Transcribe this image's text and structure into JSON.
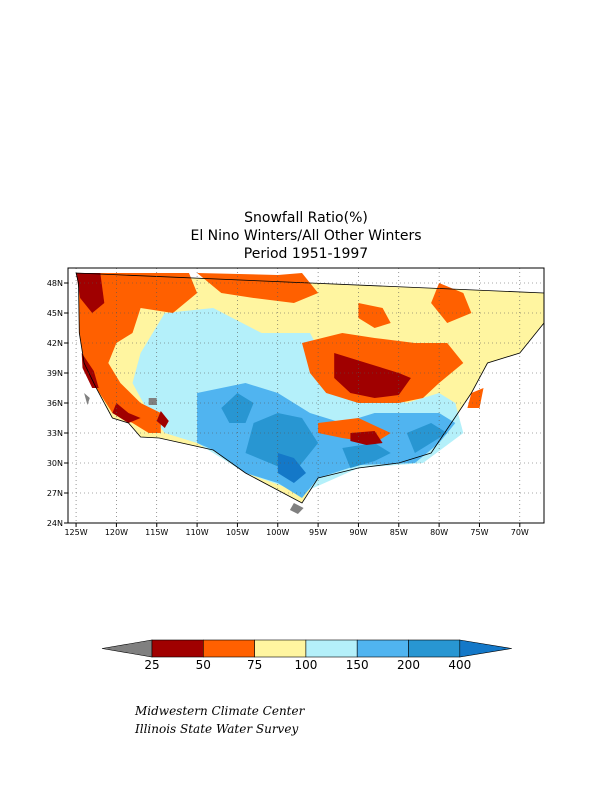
{
  "title": {
    "line1": "Snowfall Ratio(%)",
    "line2": "El Nino Winters/All Other Winters",
    "line3": "Period 1951-1997"
  },
  "map": {
    "lon_range": [
      -126,
      -67
    ],
    "lat_range": [
      24,
      49.5
    ],
    "lat_ticks": [
      {
        "value": 48,
        "label": "48N"
      },
      {
        "value": 45,
        "label": "45N"
      },
      {
        "value": 42,
        "label": "42N"
      },
      {
        "value": 39,
        "label": "39N"
      },
      {
        "value": 36,
        "label": "36N"
      },
      {
        "value": 33,
        "label": "33N"
      },
      {
        "value": 30,
        "label": "30N"
      },
      {
        "value": 27,
        "label": "27N"
      },
      {
        "value": 24,
        "label": "24N"
      }
    ],
    "lon_ticks": [
      {
        "value": -125,
        "label": "125W"
      },
      {
        "value": -120,
        "label": "120W"
      },
      {
        "value": -115,
        "label": "115W"
      },
      {
        "value": -110,
        "label": "110W"
      },
      {
        "value": -105,
        "label": "105W"
      },
      {
        "value": -100,
        "label": "100W"
      },
      {
        "value": -95,
        "label": "95W"
      },
      {
        "value": -90,
        "label": "90W"
      },
      {
        "value": -85,
        "label": "85W"
      },
      {
        "value": -80,
        "label": "80W"
      },
      {
        "value": -75,
        "label": "75W"
      },
      {
        "value": -70,
        "label": "70W"
      }
    ],
    "grid": "dotted",
    "colors": {
      "lt25": "#808080",
      "25_50": "#a00000",
      "50_75": "#ff6000",
      "75_100": "#fff5a0",
      "100_150": "#b4f0fa",
      "150_200": "#50b4f0",
      "200_400": "#2896d2",
      "gt400": "#1478c8"
    },
    "regions": [
      {
        "level": "75_100",
        "polygon": [
          [
            -125,
            49
          ],
          [
            -67,
            47
          ],
          [
            -67,
            44
          ],
          [
            -70,
            41
          ],
          [
            -74,
            40
          ],
          [
            -76,
            37
          ],
          [
            -81,
            31
          ],
          [
            -85,
            30
          ],
          [
            -90,
            29.5
          ],
          [
            -95,
            28.5
          ],
          [
            -97,
            26
          ],
          [
            -104,
            29
          ],
          [
            -108,
            31.3
          ],
          [
            -114.7,
            32.5
          ],
          [
            -117,
            32.6
          ],
          [
            -118.5,
            34
          ],
          [
            -120.5,
            34.5
          ],
          [
            -122.5,
            37.5
          ],
          [
            -124,
            40
          ],
          [
            -124.6,
            43
          ],
          [
            -124.7,
            48
          ]
        ]
      },
      {
        "level": "100_150",
        "polygon": [
          [
            -114,
            45
          ],
          [
            -108,
            45.5
          ],
          [
            -102,
            43
          ],
          [
            -96,
            43
          ],
          [
            -94,
            40
          ],
          [
            -93,
            38
          ],
          [
            -88,
            37
          ],
          [
            -84,
            36
          ],
          [
            -80,
            37
          ],
          [
            -78,
            36
          ],
          [
            -77,
            33
          ],
          [
            -82,
            30
          ],
          [
            -90,
            29.5
          ],
          [
            -97,
            27
          ],
          [
            -104,
            29
          ],
          [
            -110,
            32
          ],
          [
            -114,
            33
          ],
          [
            -116,
            35
          ],
          [
            -118,
            38
          ],
          [
            -117,
            41
          ]
        ]
      },
      {
        "level": "150_200",
        "polygon": [
          [
            -110,
            37
          ],
          [
            -104,
            38
          ],
          [
            -100,
            37
          ],
          [
            -96,
            35
          ],
          [
            -92,
            34
          ],
          [
            -88,
            35
          ],
          [
            -84,
            35
          ],
          [
            -80,
            35
          ],
          [
            -78,
            34
          ],
          [
            -80,
            32
          ],
          [
            -83,
            30
          ],
          [
            -90,
            29.8
          ],
          [
            -95,
            28.5
          ],
          [
            -97,
            26.5
          ],
          [
            -100,
            28
          ],
          [
            -104,
            29
          ],
          [
            -108,
            31.3
          ],
          [
            -110,
            32
          ]
        ]
      },
      {
        "level": "200_400",
        "polygon": [
          [
            -103,
            34
          ],
          [
            -100,
            35
          ],
          [
            -97,
            34.5
          ],
          [
            -95,
            32
          ],
          [
            -98,
            29
          ],
          [
            -101,
            30
          ],
          [
            -104,
            31
          ]
        ]
      },
      {
        "level": "200_400",
        "polygon": [
          [
            -92,
            31.5
          ],
          [
            -88,
            32
          ],
          [
            -86,
            31
          ],
          [
            -88,
            30.2
          ],
          [
            -91,
            29.5
          ]
        ]
      },
      {
        "level": "200_400",
        "polygon": [
          [
            -84,
            33
          ],
          [
            -81,
            34
          ],
          [
            -79,
            33
          ],
          [
            -81,
            32
          ],
          [
            -83,
            31
          ]
        ]
      },
      {
        "level": "200_400",
        "polygon": [
          [
            -107,
            35.5
          ],
          [
            -105,
            37
          ],
          [
            -103,
            36
          ],
          [
            -104,
            34
          ],
          [
            -106,
            34
          ]
        ]
      },
      {
        "level": "gt400",
        "polygon": [
          [
            -100,
            31
          ],
          [
            -98,
            30.5
          ],
          [
            -96.5,
            29
          ],
          [
            -98,
            28
          ],
          [
            -100,
            29
          ]
        ]
      },
      {
        "level": "50_75",
        "polygon": [
          [
            -125,
            49
          ],
          [
            -111,
            49
          ],
          [
            -110,
            47
          ],
          [
            -113,
            45
          ],
          [
            -117,
            45.5
          ],
          [
            -118,
            43
          ],
          [
            -120,
            42
          ],
          [
            -121,
            40
          ],
          [
            -119.5,
            38
          ],
          [
            -117,
            36
          ],
          [
            -114.5,
            35
          ],
          [
            -114.5,
            33
          ],
          [
            -116,
            33
          ],
          [
            -118,
            34
          ],
          [
            -120.5,
            35
          ],
          [
            -122.5,
            37.5
          ],
          [
            -124,
            40
          ],
          [
            -124.6,
            43
          ],
          [
            -124.7,
            48
          ]
        ]
      },
      {
        "level": "50_75",
        "polygon": [
          [
            -110,
            49
          ],
          [
            -100,
            48.8
          ],
          [
            -97,
            49
          ],
          [
            -95,
            47
          ],
          [
            -98,
            46
          ],
          [
            -103,
            46.5
          ],
          [
            -107,
            47
          ]
        ]
      },
      {
        "level": "50_75",
        "polygon": [
          [
            -97,
            42
          ],
          [
            -92,
            43
          ],
          [
            -88,
            42.5
          ],
          [
            -83,
            42
          ],
          [
            -79,
            42
          ],
          [
            -77,
            40
          ],
          [
            -80,
            38
          ],
          [
            -82,
            36.5
          ],
          [
            -85,
            36
          ],
          [
            -90,
            36
          ],
          [
            -94,
            37
          ],
          [
            -96,
            39
          ]
        ]
      },
      {
        "level": "50_75",
        "polygon": [
          [
            -95,
            34
          ],
          [
            -90,
            34.5
          ],
          [
            -86,
            33
          ],
          [
            -88,
            32
          ],
          [
            -92,
            32.5
          ],
          [
            -95,
            33
          ]
        ]
      },
      {
        "level": "50_75",
        "polygon": [
          [
            -90,
            46
          ],
          [
            -87,
            45.5
          ],
          [
            -86,
            44
          ],
          [
            -88,
            43.5
          ],
          [
            -90,
            44.5
          ]
        ]
      },
      {
        "level": "50_75",
        "polygon": [
          [
            -80,
            48
          ],
          [
            -77,
            47
          ],
          [
            -76,
            45
          ],
          [
            -79,
            44
          ],
          [
            -81,
            46
          ]
        ]
      },
      {
        "level": "50_75",
        "polygon": [
          [
            -76,
            37
          ],
          [
            -74.5,
            37.5
          ],
          [
            -75,
            35.5
          ],
          [
            -76.5,
            35.5
          ]
        ]
      },
      {
        "level": "25_50",
        "polygon": [
          [
            -125,
            49
          ],
          [
            -122,
            49
          ],
          [
            -121.5,
            46
          ],
          [
            -123,
            45
          ],
          [
            -124.5,
            46.5
          ]
        ]
      },
      {
        "level": "25_50",
        "polygon": [
          [
            -93,
            41
          ],
          [
            -89,
            40
          ],
          [
            -85,
            39
          ],
          [
            -83.5,
            38.5
          ],
          [
            -85,
            36.8
          ],
          [
            -88,
            36.5
          ],
          [
            -91,
            37
          ],
          [
            -93,
            38.5
          ]
        ]
      },
      {
        "level": "25_50",
        "polygon": [
          [
            -124.3,
            41
          ],
          [
            -122.8,
            39.2
          ],
          [
            -122.2,
            37.5
          ],
          [
            -123,
            37.5
          ],
          [
            -124.2,
            39.5
          ]
        ]
      },
      {
        "level": "25_50",
        "polygon": [
          [
            -120,
            36
          ],
          [
            -118.5,
            35
          ],
          [
            -117,
            34.5
          ],
          [
            -118.5,
            34
          ],
          [
            -120.5,
            35
          ]
        ]
      },
      {
        "level": "25_50",
        "polygon": [
          [
            -91,
            33
          ],
          [
            -88,
            33.2
          ],
          [
            -87,
            32
          ],
          [
            -89,
            31.8
          ],
          [
            -91,
            32.2
          ]
        ]
      },
      {
        "level": "25_50",
        "polygon": [
          [
            -114.5,
            35.2
          ],
          [
            -113.5,
            34.2
          ],
          [
            -114,
            33.5
          ],
          [
            -115,
            34.2
          ]
        ]
      },
      {
        "level": "lt25",
        "polygon": [
          [
            -124,
            37
          ],
          [
            -123.3,
            36.5
          ],
          [
            -123.6,
            35.8
          ]
        ]
      },
      {
        "level": "lt25",
        "polygon": [
          [
            -98,
            26
          ],
          [
            -96.8,
            25.5
          ],
          [
            -97.5,
            24.9
          ],
          [
            -98.5,
            25.3
          ]
        ]
      },
      {
        "level": "lt25",
        "polygon": [
          [
            -116,
            36.5
          ],
          [
            -115,
            36.5
          ],
          [
            -115,
            35.8
          ],
          [
            -116,
            35.8
          ]
        ]
      }
    ]
  },
  "colorbar": {
    "colors": [
      "#808080",
      "#a00000",
      "#ff6000",
      "#fff5a0",
      "#b4f0fa",
      "#50b4f0",
      "#2896d2",
      "#1478c8"
    ],
    "labels": [
      "25",
      "50",
      "75",
      "100",
      "150",
      "200",
      "400"
    ]
  },
  "credits": {
    "line1": "Midwestern Climate Center",
    "line2": "Illinois State Water Survey"
  }
}
